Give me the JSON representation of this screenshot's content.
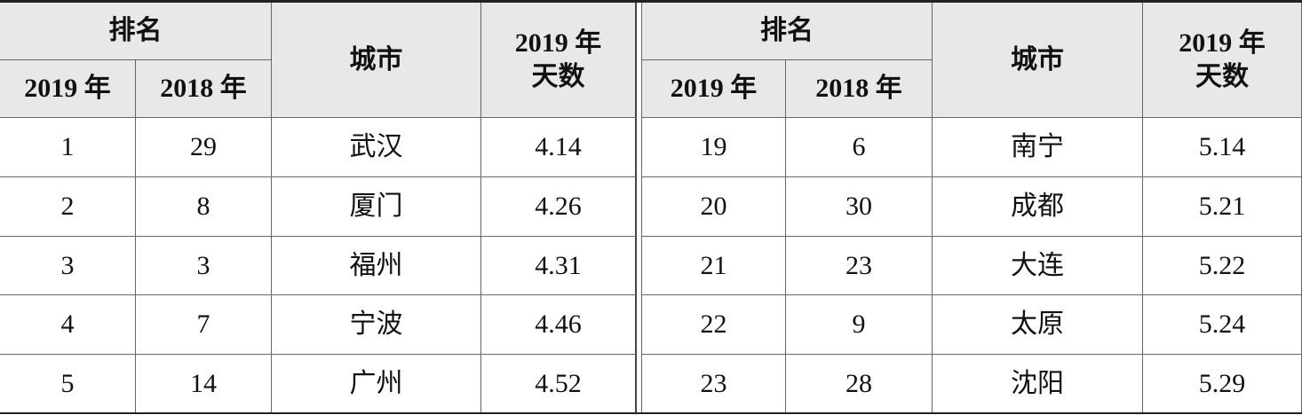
{
  "table": {
    "left": {
      "header": {
        "rank": "排名",
        "rank_2019": "2019 年",
        "rank_2018": "2018 年",
        "city": "城市",
        "days": [
          "2019 年",
          "天数"
        ]
      },
      "rows": [
        [
          "1",
          "29",
          "武汉",
          "4.14"
        ],
        [
          "2",
          "8",
          "厦门",
          "4.26"
        ],
        [
          "3",
          "3",
          "福州",
          "4.31"
        ],
        [
          "4",
          "7",
          "宁波",
          "4.46"
        ],
        [
          "5",
          "14",
          "广州",
          "4.52"
        ]
      ]
    },
    "right": {
      "header": {
        "rank": "排名",
        "rank_2019": "2019 年",
        "rank_2018": "2018 年",
        "city": "城市",
        "days": [
          "2019 年",
          "天数"
        ]
      },
      "rows": [
        [
          "19",
          "6",
          "南宁",
          "5.14"
        ],
        [
          "20",
          "30",
          "成都",
          "5.21"
        ],
        [
          "21",
          "23",
          "大连",
          "5.22"
        ],
        [
          "22",
          "9",
          "太原",
          "5.24"
        ],
        [
          "23",
          "28",
          "沈阳",
          "5.29"
        ]
      ]
    }
  }
}
